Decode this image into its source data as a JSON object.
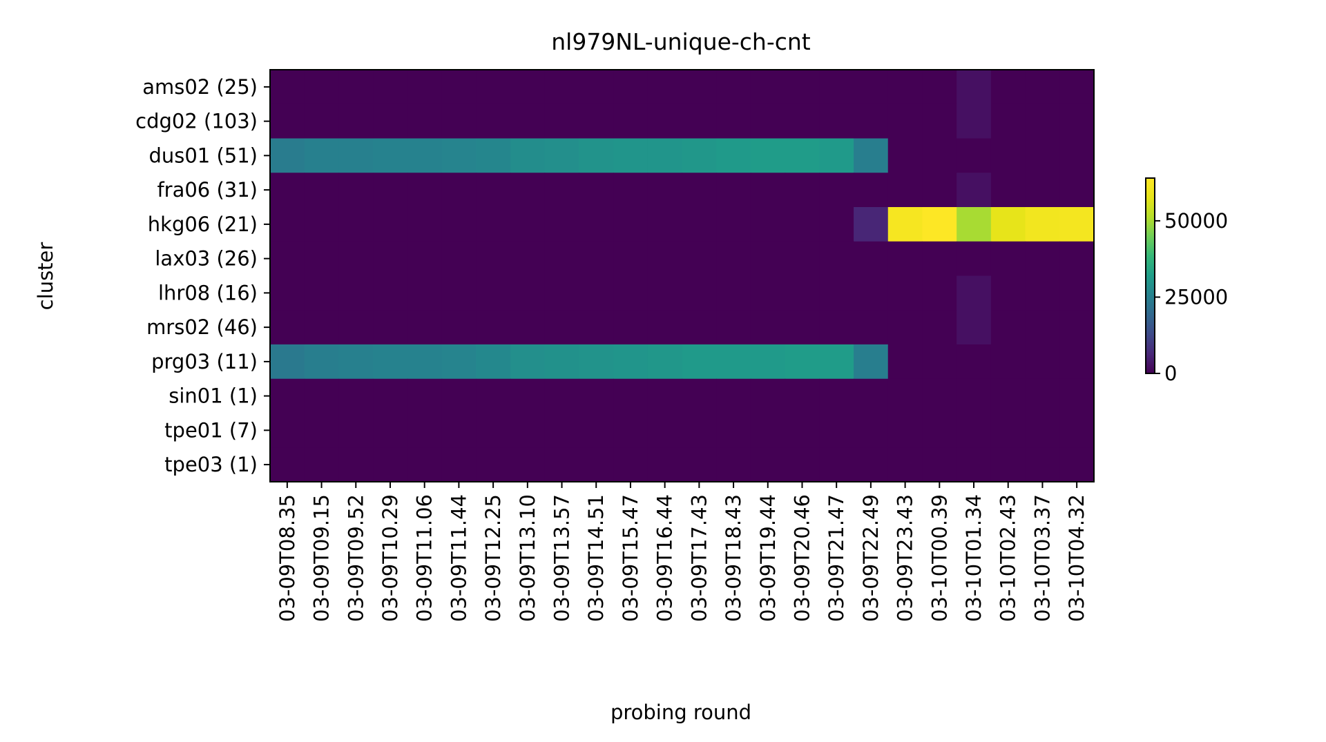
{
  "chart_data": {
    "type": "heatmap",
    "title": "nl979NL-unique-ch-cnt",
    "xlabel": "probing round",
    "ylabel": "cluster",
    "x": [
      "03-09T08.35",
      "03-09T09.15",
      "03-09T09.52",
      "03-09T10.29",
      "03-09T11.06",
      "03-09T11.44",
      "03-09T12.25",
      "03-09T13.10",
      "03-09T13.57",
      "03-09T14.51",
      "03-09T15.47",
      "03-09T16.44",
      "03-09T17.43",
      "03-09T18.43",
      "03-09T19.44",
      "03-09T20.46",
      "03-09T21.47",
      "03-09T22.49",
      "03-09T23.43",
      "03-10T00.39",
      "03-10T01.34",
      "03-10T02.43",
      "03-10T03.37",
      "03-10T04.32"
    ],
    "y": [
      "ams02 (25)",
      "cdg02 (103)",
      "dus01 (51)",
      "fra06 (31)",
      "hkg06 (21)",
      "lax03 (26)",
      "lhr08 (16)",
      "mrs02 (46)",
      "prg03 (11)",
      "sin01 (1)",
      "tpe01 (7)",
      "tpe03 (1)"
    ],
    "values": [
      [
        0,
        0,
        0,
        0,
        0,
        0,
        0,
        0,
        0,
        0,
        0,
        0,
        0,
        0,
        0,
        0,
        0,
        0,
        0,
        0,
        2500,
        0,
        0,
        0
      ],
      [
        0,
        0,
        0,
        0,
        0,
        0,
        0,
        0,
        0,
        0,
        0,
        0,
        0,
        0,
        0,
        0,
        0,
        0,
        0,
        0,
        2500,
        0,
        0,
        0
      ],
      [
        24000,
        25000,
        25000,
        25500,
        25500,
        26000,
        26500,
        28000,
        28500,
        29500,
        30000,
        30000,
        30500,
        31000,
        31500,
        31500,
        31000,
        24500,
        0,
        0,
        0,
        0,
        0,
        0
      ],
      [
        0,
        0,
        0,
        0,
        0,
        0,
        0,
        0,
        0,
        0,
        0,
        0,
        0,
        0,
        0,
        0,
        0,
        0,
        0,
        0,
        2500,
        0,
        0,
        0
      ],
      [
        0,
        0,
        0,
        0,
        0,
        0,
        0,
        0,
        0,
        0,
        0,
        0,
        0,
        0,
        0,
        0,
        0,
        6000,
        62000,
        64000,
        50000,
        58000,
        61000,
        61500
      ],
      [
        0,
        0,
        0,
        0,
        0,
        0,
        0,
        0,
        0,
        0,
        0,
        0,
        0,
        0,
        0,
        0,
        0,
        0,
        0,
        0,
        0,
        0,
        0,
        0
      ],
      [
        0,
        0,
        0,
        0,
        0,
        0,
        0,
        0,
        0,
        0,
        0,
        0,
        0,
        0,
        0,
        0,
        0,
        0,
        0,
        0,
        2500,
        0,
        0,
        0
      ],
      [
        0,
        0,
        0,
        0,
        0,
        0,
        0,
        0,
        0,
        0,
        0,
        0,
        0,
        0,
        0,
        0,
        0,
        0,
        0,
        0,
        2500,
        0,
        0,
        0
      ],
      [
        23500,
        24500,
        25000,
        25500,
        25500,
        26000,
        27000,
        28500,
        29000,
        29500,
        30000,
        30500,
        31000,
        31000,
        31000,
        31500,
        31500,
        24500,
        0,
        0,
        0,
        0,
        0,
        0
      ],
      [
        0,
        0,
        0,
        0,
        0,
        0,
        0,
        0,
        0,
        0,
        0,
        0,
        0,
        0,
        0,
        0,
        0,
        0,
        0,
        0,
        0,
        0,
        0,
        0
      ],
      [
        0,
        0,
        0,
        0,
        0,
        0,
        0,
        0,
        0,
        0,
        0,
        0,
        0,
        0,
        0,
        0,
        0,
        0,
        0,
        0,
        0,
        0,
        0,
        0
      ],
      [
        0,
        0,
        0,
        0,
        0,
        0,
        0,
        0,
        0,
        0,
        0,
        0,
        0,
        0,
        0,
        0,
        0,
        0,
        0,
        0,
        0,
        0,
        0,
        0
      ]
    ],
    "colormap": "viridis",
    "vmin": 0,
    "vmax": 64000,
    "colorbar": {
      "ticks": [
        0,
        25000,
        50000
      ],
      "tick_labels": [
        "0",
        "25000",
        "50000"
      ]
    }
  }
}
